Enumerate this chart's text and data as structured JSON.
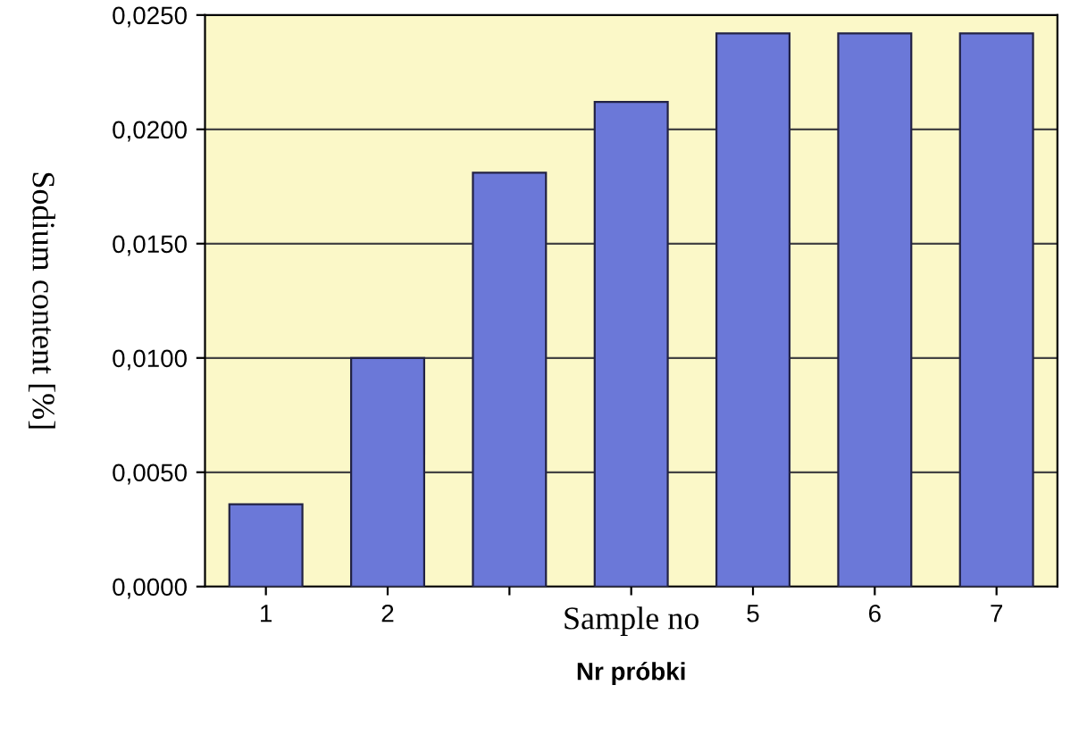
{
  "chart_data": {
    "type": "bar",
    "xlabel": "Nr próbki",
    "ylabel": "Sodium content [%]",
    "annotations": [
      "Sample no"
    ],
    "categories": [
      "1",
      "2",
      null,
      null,
      "5",
      "6",
      "7"
    ],
    "values": [
      0.0036,
      0.01,
      0.0181,
      0.0212,
      0.0242,
      0.0242,
      0.0242
    ],
    "color": "#6b78d8",
    "ylim": [
      0,
      0.025
    ],
    "yticks": [
      {
        "value": 0,
        "label": "0,0000"
      },
      {
        "value": 0.005,
        "label": "0,0050"
      },
      {
        "value": 0.01,
        "label": "0,0100"
      },
      {
        "value": 0.015,
        "label": "0,0150"
      },
      {
        "value": 0.02,
        "label": "0,0200"
      },
      {
        "value": 0.025,
        "label": "0,0250"
      }
    ],
    "grid": "y",
    "legend": false
  }
}
